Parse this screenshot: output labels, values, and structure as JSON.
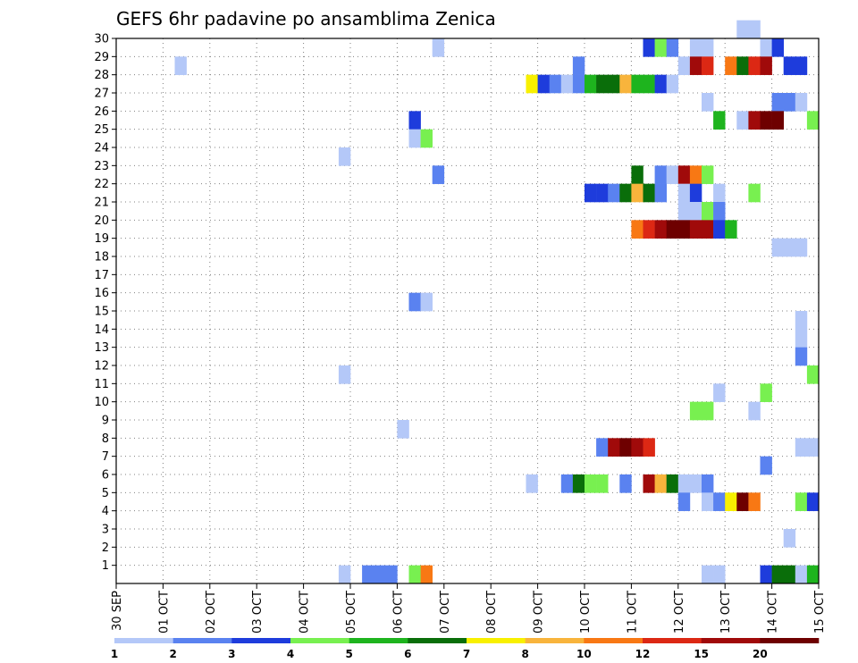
{
  "chart_data": {
    "type": "heatmap",
    "title": "GEFS 6hr padavine po ansamblima Zenica",
    "x_tick_labels": [
      "30 SEP",
      "01 OCT",
      "02 OCT",
      "03 OCT",
      "04 OCT",
      "05 OCT",
      "06 OCT",
      "07 OCT",
      "08 OCT",
      "09 OCT",
      "10 OCT",
      "11 OCT",
      "12 OCT",
      "13 OCT",
      "14 OCT",
      "15 OCT"
    ],
    "y_tick_labels": [
      "1",
      "2",
      "3",
      "4",
      "5",
      "6",
      "7",
      "8",
      "9",
      "10",
      "11",
      "12",
      "13",
      "14",
      "15",
      "16",
      "17",
      "18",
      "19",
      "20",
      "21",
      "22",
      "23",
      "24",
      "25",
      "26",
      "27",
      "28",
      "29",
      "30"
    ],
    "x_range_days": [
      0,
      15
    ],
    "y_range": [
      0,
      30
    ],
    "time_step_days": 0.25,
    "grid": "dotted",
    "legend": {
      "placement": "bottom",
      "labels": [
        "1",
        "2",
        "3",
        "4",
        "5",
        "6",
        "7",
        "8",
        "10",
        "12",
        "15",
        "20"
      ],
      "colors": [
        "#b4c8f8",
        "#5a82f0",
        "#1e3cdc",
        "#78f050",
        "#1eb41e",
        "#0a6e0a",
        "#f8f000",
        "#f8b43c",
        "#f87814",
        "#dc2814",
        "#a00a0a",
        "#6e0000"
      ]
    },
    "cells": [
      [
        13.25,
        30,
        0
      ],
      [
        13.5,
        30,
        0
      ],
      [
        1.25,
        28,
        0
      ],
      [
        9.75,
        28,
        1
      ],
      [
        6.75,
        29,
        0
      ],
      [
        6.75,
        22,
        1
      ],
      [
        4.75,
        23,
        0
      ],
      [
        4.75,
        11,
        0
      ],
      [
        6.25,
        25,
        2
      ],
      [
        6.25,
        24,
        0
      ],
      [
        6.5,
        24,
        3
      ],
      [
        6.25,
        15,
        1
      ],
      [
        6.5,
        15,
        0
      ],
      [
        6.0,
        8,
        0
      ],
      [
        8.75,
        27,
        6
      ],
      [
        9.0,
        27,
        2
      ],
      [
        9.25,
        27,
        1
      ],
      [
        9.5,
        27,
        0
      ],
      [
        9.75,
        27,
        1
      ],
      [
        10.0,
        27,
        4
      ],
      [
        10.25,
        27,
        5
      ],
      [
        10.5,
        27,
        5
      ],
      [
        10.75,
        27,
        7
      ],
      [
        11.0,
        27,
        4
      ],
      [
        11.25,
        27,
        4
      ],
      [
        11.5,
        27,
        2
      ],
      [
        11.75,
        27,
        0
      ],
      [
        11.25,
        29,
        2
      ],
      [
        11.5,
        29,
        3
      ],
      [
        11.75,
        29,
        1
      ],
      [
        12.25,
        29,
        0
      ],
      [
        12.5,
        29,
        0
      ],
      [
        13.75,
        29,
        0
      ],
      [
        14.0,
        29,
        2
      ],
      [
        12.0,
        28,
        0
      ],
      [
        12.25,
        28,
        10
      ],
      [
        12.5,
        28,
        9
      ],
      [
        13.0,
        28,
        8
      ],
      [
        13.25,
        28,
        5
      ],
      [
        13.5,
        28,
        9
      ],
      [
        13.75,
        28,
        10
      ],
      [
        14.25,
        28,
        2
      ],
      [
        14.5,
        28,
        2
      ],
      [
        12.5,
        26,
        0
      ],
      [
        14.0,
        26,
        1
      ],
      [
        14.25,
        26,
        1
      ],
      [
        14.5,
        26,
        0
      ],
      [
        12.75,
        25,
        4
      ],
      [
        13.25,
        25,
        0
      ],
      [
        13.5,
        25,
        10
      ],
      [
        13.75,
        25,
        11
      ],
      [
        14.0,
        25,
        11
      ],
      [
        14.75,
        25,
        3
      ],
      [
        11.0,
        22,
        5
      ],
      [
        11.5,
        22,
        1
      ],
      [
        11.75,
        22,
        0
      ],
      [
        12.0,
        22,
        10
      ],
      [
        12.25,
        22,
        8
      ],
      [
        12.5,
        22,
        3
      ],
      [
        10.0,
        21,
        2
      ],
      [
        10.25,
        21,
        2
      ],
      [
        10.5,
        21,
        1
      ],
      [
        10.75,
        21,
        5
      ],
      [
        11.0,
        21,
        7
      ],
      [
        11.25,
        21,
        5
      ],
      [
        11.5,
        21,
        1
      ],
      [
        12.0,
        21,
        0
      ],
      [
        12.25,
        21,
        2
      ],
      [
        12.75,
        21,
        0
      ],
      [
        13.5,
        21,
        3
      ],
      [
        12.0,
        20,
        0
      ],
      [
        12.25,
        20,
        0
      ],
      [
        12.5,
        20,
        3
      ],
      [
        12.75,
        20,
        1
      ],
      [
        11.0,
        19,
        8
      ],
      [
        11.25,
        19,
        9
      ],
      [
        11.5,
        19,
        10
      ],
      [
        11.75,
        19,
        11
      ],
      [
        12.0,
        19,
        11
      ],
      [
        12.25,
        19,
        10
      ],
      [
        12.5,
        19,
        10
      ],
      [
        12.75,
        19,
        2
      ],
      [
        13.0,
        19,
        4
      ],
      [
        14.0,
        18,
        0
      ],
      [
        14.25,
        18,
        0
      ],
      [
        14.5,
        18,
        0
      ],
      [
        14.5,
        14,
        0
      ],
      [
        14.5,
        13,
        0
      ],
      [
        14.5,
        12,
        1
      ],
      [
        14.75,
        11,
        3
      ],
      [
        12.75,
        10,
        0
      ],
      [
        13.75,
        10,
        3
      ],
      [
        12.25,
        9,
        3
      ],
      [
        12.5,
        9,
        3
      ],
      [
        13.5,
        9,
        0
      ],
      [
        10.25,
        7,
        1
      ],
      [
        10.5,
        7,
        10
      ],
      [
        10.75,
        7,
        11
      ],
      [
        11.0,
        7,
        10
      ],
      [
        11.25,
        7,
        9
      ],
      [
        14.5,
        7,
        0
      ],
      [
        14.75,
        7,
        0
      ],
      [
        13.75,
        6,
        1
      ],
      [
        8.75,
        5,
        0
      ],
      [
        9.5,
        5,
        1
      ],
      [
        9.75,
        5,
        5
      ],
      [
        10.0,
        5,
        3
      ],
      [
        10.25,
        5,
        3
      ],
      [
        10.75,
        5,
        1
      ],
      [
        11.25,
        5,
        10
      ],
      [
        11.5,
        5,
        7
      ],
      [
        11.75,
        5,
        5
      ],
      [
        12.0,
        5,
        0
      ],
      [
        12.25,
        5,
        0
      ],
      [
        12.5,
        5,
        1
      ],
      [
        12.0,
        4,
        1
      ],
      [
        12.5,
        4,
        0
      ],
      [
        12.75,
        4,
        1
      ],
      [
        13.0,
        4,
        6
      ],
      [
        13.25,
        4,
        11
      ],
      [
        13.5,
        4,
        8
      ],
      [
        14.5,
        4,
        3
      ],
      [
        14.75,
        4,
        2
      ],
      [
        14.25,
        2,
        0
      ],
      [
        4.75,
        0,
        0
      ],
      [
        5.25,
        0,
        1
      ],
      [
        5.5,
        0,
        1
      ],
      [
        5.75,
        0,
        1
      ],
      [
        6.25,
        0,
        3
      ],
      [
        6.5,
        0,
        8
      ],
      [
        12.5,
        0,
        0
      ],
      [
        12.75,
        0,
        0
      ],
      [
        13.75,
        0,
        2
      ],
      [
        14.0,
        0,
        5
      ],
      [
        14.25,
        0,
        5
      ],
      [
        14.5,
        0,
        0
      ],
      [
        14.75,
        0,
        4
      ]
    ]
  }
}
